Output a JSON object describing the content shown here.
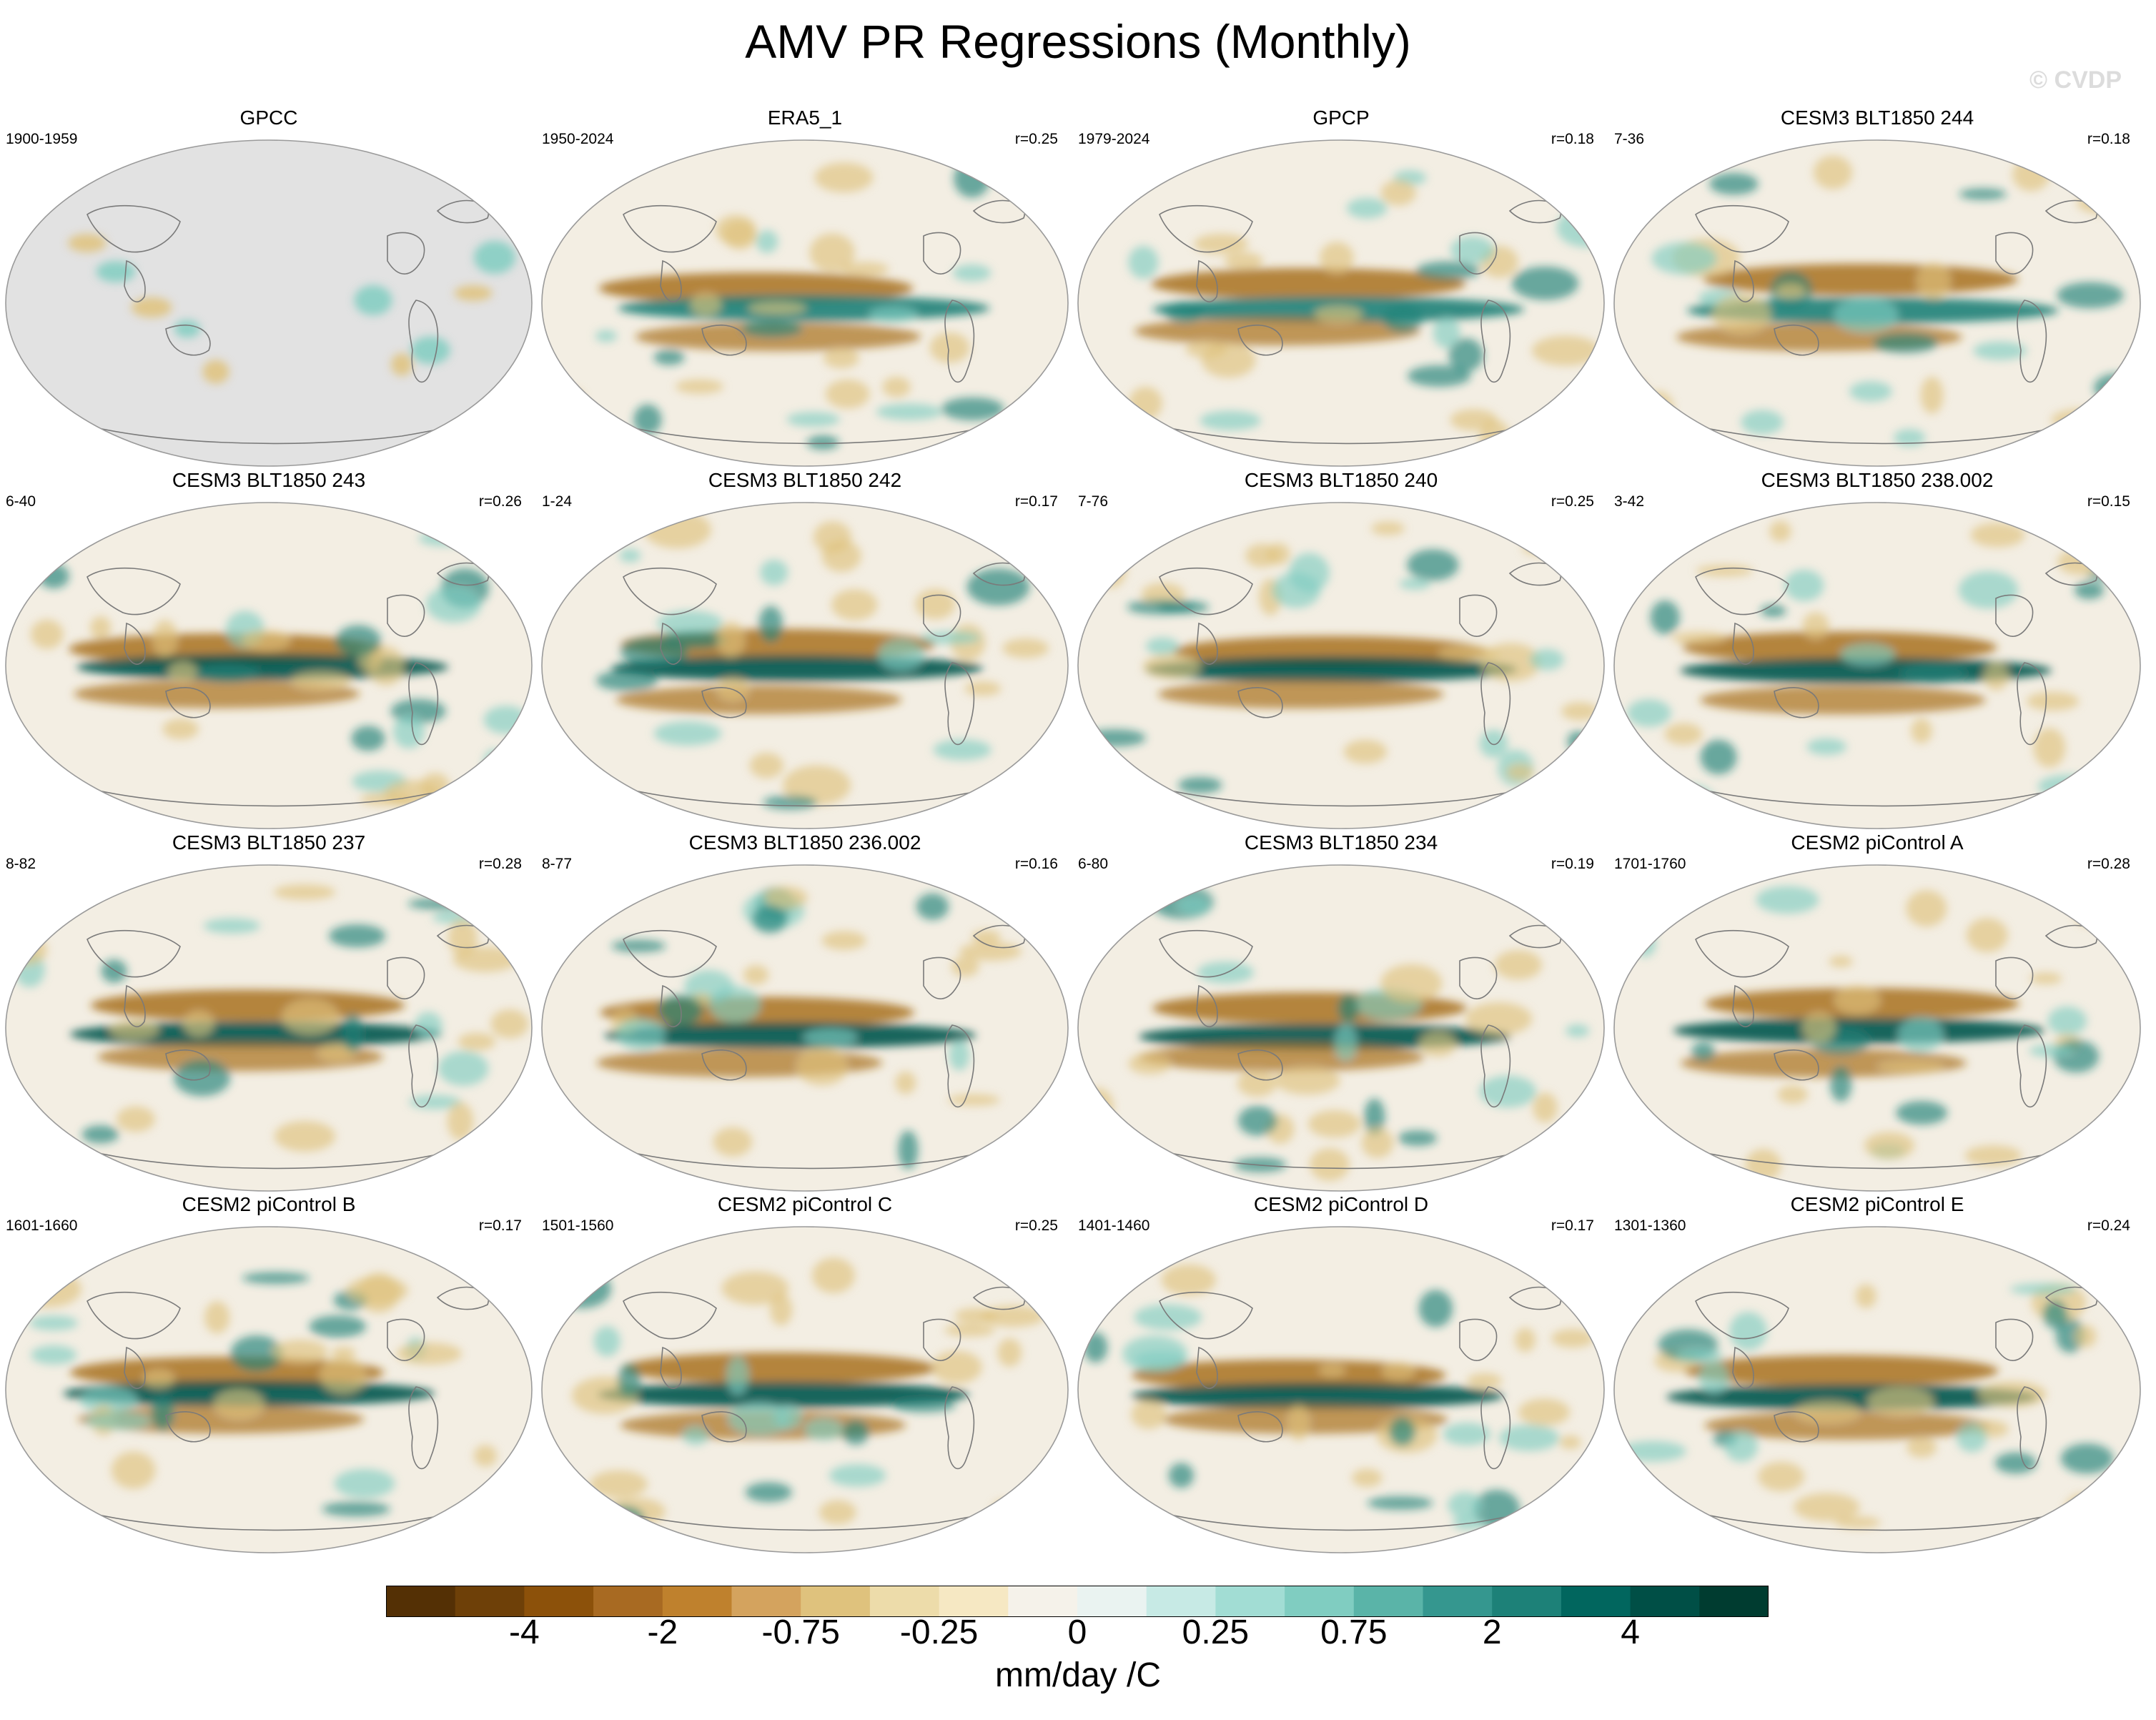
{
  "title": "AMV PR Regressions (Monthly)",
  "watermark": "© CVDP",
  "panels": [
    {
      "title": "GPCC",
      "period": "1900-1959",
      "corr": ""
    },
    {
      "title": "ERA5_1",
      "period": "1950-2024",
      "corr": "r=0.25"
    },
    {
      "title": "GPCP",
      "period": "1979-2024",
      "corr": "r=0.18"
    },
    {
      "title": "CESM3 BLT1850 244",
      "period": "7-36",
      "corr": "r=0.18"
    },
    {
      "title": "CESM3 BLT1850 243",
      "period": "6-40",
      "corr": "r=0.26"
    },
    {
      "title": "CESM3 BLT1850 242",
      "period": "1-24",
      "corr": "r=0.17"
    },
    {
      "title": "CESM3 BLT1850 240",
      "period": "7-76",
      "corr": "r=0.25"
    },
    {
      "title": "CESM3 BLT1850 238.002",
      "period": "3-42",
      "corr": "r=0.15"
    },
    {
      "title": "CESM3 BLT1850 237",
      "period": "8-82",
      "corr": "r=0.28"
    },
    {
      "title": "CESM3 BLT1850 236.002",
      "period": "8-77",
      "corr": "r=0.16"
    },
    {
      "title": "CESM3 BLT1850 234",
      "period": "6-80",
      "corr": "r=0.19"
    },
    {
      "title": "CESM2 piControl A",
      "period": "1701-1760",
      "corr": "r=0.28"
    },
    {
      "title": "CESM2 piControl B",
      "period": "1601-1660",
      "corr": "r=0.17"
    },
    {
      "title": "CESM2 piControl C",
      "period": "1501-1560",
      "corr": "r=0.25"
    },
    {
      "title": "CESM2 piControl D",
      "period": "1401-1460",
      "corr": "r=0.17"
    },
    {
      "title": "CESM2 piControl E",
      "period": "1301-1360",
      "corr": "r=0.24"
    }
  ],
  "colorbar": {
    "colors": [
      "#543005",
      "#6e4008",
      "#8c510a",
      "#a86a22",
      "#bf812d",
      "#d4a35e",
      "#dfc27d",
      "#eddcaa",
      "#f6e8c3",
      "#f5f2ea",
      "#eaf3f1",
      "#c7eae5",
      "#a2ddd4",
      "#80cdc1",
      "#5ab4a8",
      "#35978f",
      "#1d8178",
      "#01665e",
      "#004f46",
      "#003c30"
    ],
    "tick_labels": [
      "-4",
      "-2",
      "-0.75",
      "-0.25",
      "0",
      "0.25",
      "0.75",
      "2",
      "4"
    ],
    "units": "mm/day /C"
  },
  "map_colors": {
    "ocean_background": "#f3eee3",
    "land_missing": "#e2e2e2",
    "outline": "#7a7a7a",
    "dry": "#a8711f",
    "dry_light": "#dfc27d",
    "wet": "#1d8178",
    "wet_light": "#80cdc1",
    "wet_strong": "#01544c"
  }
}
